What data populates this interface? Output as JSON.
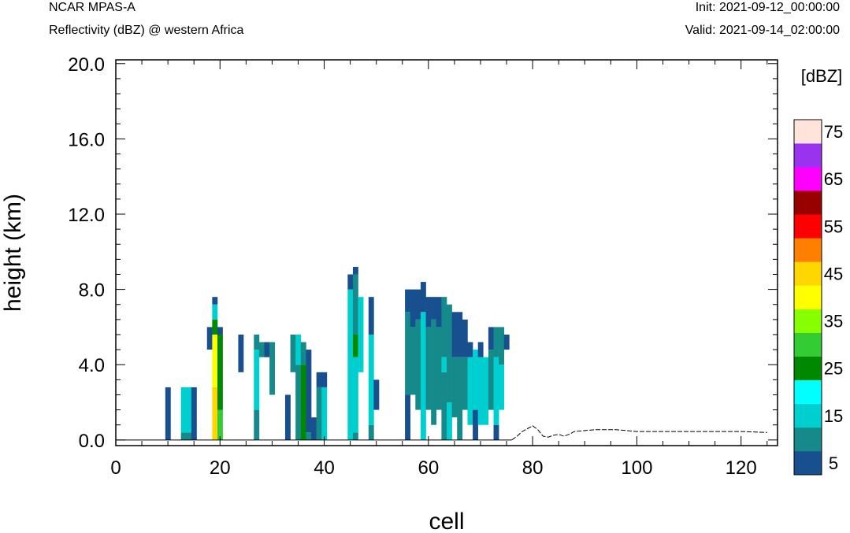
{
  "header": {
    "model": "NCAR MPAS-A",
    "field": "Reflectivity (dBZ) @ western Africa",
    "init": "Init: 2021-09-12_00:00:00",
    "valid": "Valid: 2021-09-14_02:00:00"
  },
  "chart_data": {
    "type": "heatmap",
    "title": "Reflectivity (dBZ) @ western Africa",
    "xlabel": "cell",
    "ylabel": "height (km)",
    "xlim": [
      0,
      127
    ],
    "ylim": [
      -0.3,
      20.2
    ],
    "x_ticks": [
      "0",
      "20",
      "40",
      "60",
      "80",
      "100",
      "120"
    ],
    "y_ticks": [
      "0.0",
      "4.0",
      "8.0",
      "12.0",
      "16.0",
      "20.0"
    ],
    "colorbar": {
      "title": "[dBZ]",
      "labels": [
        "5",
        "15",
        "25",
        "35",
        "45",
        "55",
        "65",
        "75"
      ],
      "colors": [
        "#18508f",
        "#168a8a",
        "#00cfcf",
        "#00ffff",
        "#008800",
        "#33cc33",
        "#88ff00",
        "#ffff00",
        "#ffd700",
        "#ff8000",
        "#ff0000",
        "#990000",
        "#ff00ff",
        "#9933ee",
        "#ffe4dc"
      ]
    },
    "bin_dz_km": 0.4,
    "columns": [
      {
        "x": 10,
        "bins": [
          [
            0,
            2.8,
            0
          ]
        ]
      },
      {
        "x": 13,
        "bins": [
          [
            0,
            0.4,
            1
          ],
          [
            0.4,
            2.8,
            2
          ]
        ]
      },
      {
        "x": 14,
        "bins": [
          [
            0,
            0.4,
            1
          ],
          [
            0.4,
            2.8,
            2
          ]
        ]
      },
      {
        "x": 15,
        "bins": [
          [
            0,
            2.8,
            0
          ]
        ]
      },
      {
        "x": 18,
        "bins": [
          [
            4.8,
            6.0,
            0
          ]
        ]
      },
      {
        "x": 19,
        "bins": [
          [
            0,
            2.8,
            8
          ],
          [
            2.8,
            4.4,
            7
          ],
          [
            4.4,
            5.6,
            7
          ],
          [
            5.6,
            6.4,
            4
          ],
          [
            6.4,
            7.2,
            2
          ],
          [
            7.2,
            7.6,
            0
          ]
        ]
      },
      {
        "x": 20,
        "bins": [
          [
            0,
            1.6,
            5
          ],
          [
            1.6,
            5.6,
            4
          ],
          [
            5.6,
            6.0,
            0
          ]
        ]
      },
      {
        "x": 24,
        "bins": [
          [
            3.6,
            5.6,
            0
          ]
        ]
      },
      {
        "x": 27,
        "bins": [
          [
            0,
            1.6,
            1
          ],
          [
            1.6,
            4.8,
            2
          ],
          [
            4.8,
            5.6,
            1
          ]
        ]
      },
      {
        "x": 28,
        "bins": [
          [
            4.4,
            5.2,
            1
          ]
        ]
      },
      {
        "x": 29,
        "bins": [
          [
            4.4,
            5.2,
            0
          ]
        ]
      },
      {
        "x": 30,
        "bins": [
          [
            2.4,
            5.2,
            1
          ]
        ]
      },
      {
        "x": 33,
        "bins": [
          [
            0,
            2.4,
            0
          ]
        ]
      },
      {
        "x": 34,
        "bins": [
          [
            3.6,
            5.6,
            1
          ]
        ]
      },
      {
        "x": 35,
        "bins": [
          [
            0,
            4.0,
            1
          ],
          [
            4.0,
            5.6,
            2
          ]
        ]
      },
      {
        "x": 36,
        "bins": [
          [
            0,
            4.0,
            4
          ],
          [
            4.0,
            5.2,
            1
          ]
        ]
      },
      {
        "x": 37,
        "bins": [
          [
            0,
            0.4,
            1
          ],
          [
            0.4,
            4.8,
            0
          ]
        ]
      },
      {
        "x": 38,
        "bins": [
          [
            0,
            1.2,
            0
          ]
        ]
      },
      {
        "x": 39,
        "bins": [
          [
            0,
            2.8,
            1
          ],
          [
            2.8,
            3.6,
            0
          ]
        ]
      },
      {
        "x": 40,
        "bins": [
          [
            0,
            2.8,
            2
          ],
          [
            2.8,
            3.6,
            0
          ]
        ]
      },
      {
        "x": 45,
        "bins": [
          [
            0,
            8.0,
            2
          ],
          [
            8.0,
            8.8,
            0
          ]
        ]
      },
      {
        "x": 46,
        "bins": [
          [
            0,
            0.4,
            1
          ],
          [
            0.4,
            4.4,
            2
          ],
          [
            4.4,
            5.6,
            4
          ],
          [
            5.6,
            8.8,
            1
          ],
          [
            8.8,
            9.2,
            0
          ]
        ]
      },
      {
        "x": 47,
        "bins": [
          [
            3.6,
            7.6,
            2
          ]
        ]
      },
      {
        "x": 49,
        "bins": [
          [
            0,
            0.8,
            1
          ],
          [
            0.8,
            5.6,
            2
          ],
          [
            5.6,
            7.6,
            0
          ]
        ]
      },
      {
        "x": 50,
        "bins": [
          [
            1.6,
            3.2,
            0
          ]
        ]
      },
      {
        "x": 56,
        "bins": [
          [
            0,
            2.4,
            0
          ],
          [
            2.4,
            6.8,
            1
          ],
          [
            6.8,
            8.0,
            0
          ]
        ]
      },
      {
        "x": 57,
        "bins": [
          [
            2.4,
            6.0,
            1
          ],
          [
            6.0,
            8.0,
            0
          ]
        ]
      },
      {
        "x": 58,
        "bins": [
          [
            1.6,
            6.4,
            1
          ],
          [
            6.4,
            8.0,
            0
          ]
        ]
      },
      {
        "x": 59,
        "bins": [
          [
            0,
            6.8,
            2
          ],
          [
            6.8,
            8.4,
            0
          ]
        ]
      },
      {
        "x": 60,
        "bins": [
          [
            1.6,
            6.0,
            1
          ],
          [
            6.0,
            7.6,
            0
          ]
        ]
      },
      {
        "x": 61,
        "bins": [
          [
            0.8,
            6.4,
            1
          ],
          [
            6.4,
            7.6,
            0
          ]
        ]
      },
      {
        "x": 62,
        "bins": [
          [
            1.6,
            6.0,
            1
          ],
          [
            6.0,
            7.6,
            0
          ]
        ]
      },
      {
        "x": 63,
        "bins": [
          [
            0,
            3.6,
            1
          ],
          [
            3.6,
            4.4,
            2
          ],
          [
            4.4,
            7.6,
            1
          ]
        ]
      },
      {
        "x": 64,
        "bins": [
          [
            0,
            2.0,
            2
          ],
          [
            2.0,
            7.2,
            1
          ]
        ]
      },
      {
        "x": 65,
        "bins": [
          [
            1.2,
            4.4,
            1
          ],
          [
            4.4,
            6.8,
            0
          ]
        ]
      },
      {
        "x": 66,
        "bins": [
          [
            0,
            4.4,
            1
          ],
          [
            4.4,
            6.8,
            0
          ]
        ]
      },
      {
        "x": 67,
        "bins": [
          [
            1.6,
            4.4,
            1
          ],
          [
            4.4,
            6.4,
            0
          ]
        ]
      },
      {
        "x": 68,
        "bins": [
          [
            0.8,
            4.4,
            2
          ],
          [
            4.4,
            5.2,
            0
          ]
        ]
      },
      {
        "x": 69,
        "bins": [
          [
            0,
            1.6,
            0
          ],
          [
            1.6,
            4.8,
            2
          ]
        ]
      },
      {
        "x": 70,
        "bins": [
          [
            0.8,
            4.4,
            2
          ],
          [
            4.4,
            5.2,
            0
          ]
        ]
      },
      {
        "x": 71,
        "bins": [
          [
            0.8,
            4.4,
            2
          ]
        ]
      },
      {
        "x": 72,
        "bins": [
          [
            1.6,
            4.8,
            1
          ],
          [
            4.8,
            6.0,
            0
          ]
        ]
      },
      {
        "x": 73,
        "bins": [
          [
            0,
            0.8,
            0
          ],
          [
            0.8,
            4.4,
            2
          ],
          [
            4.4,
            6.0,
            1
          ]
        ]
      },
      {
        "x": 74,
        "bins": [
          [
            1.6,
            4.0,
            2
          ],
          [
            4.0,
            6.0,
            1
          ]
        ]
      },
      {
        "x": 75,
        "bins": [
          [
            4.8,
            5.6,
            0
          ]
        ]
      }
    ],
    "terrain": {
      "x": [
        76,
        77,
        78,
        79,
        80,
        81,
        82,
        83,
        84,
        85,
        86,
        87,
        88,
        90,
        92,
        94,
        96,
        98,
        100,
        105,
        110,
        115,
        120,
        125
      ],
      "y": [
        0,
        0.2,
        0.45,
        0.6,
        0.75,
        0.55,
        0.2,
        0.15,
        0.25,
        0.3,
        0.2,
        0.3,
        0.45,
        0.5,
        0.55,
        0.55,
        0.55,
        0.5,
        0.45,
        0.45,
        0.45,
        0.45,
        0.45,
        0.4
      ]
    }
  }
}
